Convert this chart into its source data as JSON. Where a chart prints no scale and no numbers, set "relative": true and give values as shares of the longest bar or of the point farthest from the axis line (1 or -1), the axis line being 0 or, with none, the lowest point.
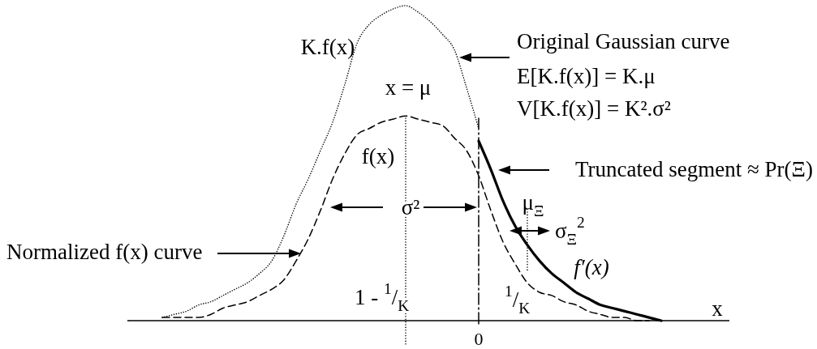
{
  "chart_data": {
    "type": "line",
    "relative": true,
    "xlabel": "x",
    "categories": [
      null,
      null,
      null,
      null,
      null,
      null,
      null,
      null,
      null,
      null,
      null,
      null,
      null,
      null,
      null,
      null,
      null,
      null,
      null,
      null,
      null,
      null,
      null,
      null,
      null,
      null,
      null,
      null,
      null,
      null,
      null,
      null,
      null,
      null,
      null,
      null,
      null,
      null,
      null,
      null,
      null,
      null
    ],
    "series": [
      {
        "name": "K.f(x)",
        "color": "#000000",
        "line_style": "dotted",
        "values": [
          0.01,
          0.02,
          0.03,
          0.05,
          0.06,
          0.08,
          0.1,
          0.12,
          0.15,
          0.19,
          0.27,
          0.37,
          0.45,
          0.54,
          0.63,
          0.75,
          0.88,
          0.94,
          0.97,
          0.99,
          1.0,
          0.98,
          0.95,
          0.91,
          0.86,
          0.74,
          0.61,
          null,
          null,
          null,
          null,
          null,
          null,
          null,
          null,
          null,
          null,
          null,
          null,
          null,
          null,
          null
        ]
      },
      {
        "name": "f(x)",
        "color": "#000000",
        "line_style": "dashed",
        "values": [
          0.01,
          0.01,
          0.01,
          0.01,
          0.02,
          0.04,
          0.05,
          0.06,
          0.08,
          0.1,
          0.13,
          0.19,
          0.26,
          0.35,
          0.45,
          0.53,
          0.59,
          0.61,
          0.63,
          0.64,
          0.65,
          0.64,
          0.63,
          0.62,
          0.58,
          0.54,
          0.46,
          0.35,
          0.25,
          0.18,
          0.12,
          0.09,
          0.08,
          0.06,
          0.05,
          0.03,
          0.02,
          0.01,
          0.01,
          0,
          0,
          null
        ]
      },
      {
        "name": "f′(x)",
        "color": "#000000",
        "line_style": "solid",
        "values": [
          null,
          null,
          null,
          null,
          null,
          null,
          null,
          null,
          null,
          null,
          null,
          null,
          null,
          null,
          null,
          null,
          null,
          null,
          null,
          null,
          null,
          null,
          null,
          null,
          null,
          null,
          0.57,
          0.48,
          0.38,
          0.3,
          0.24,
          0.19,
          0.15,
          0.12,
          0.09,
          0.07,
          0.05,
          0.04,
          0.03,
          0.02,
          0.01,
          0
        ]
      }
    ],
    "annotations": [
      "Original Gaussian curve",
      "E[K.f(x)] = K.μ",
      "V[K.f(x)] = K².σ²",
      "Truncated segment ≈ Pr(Ξ)",
      "Normalized f(x) curve",
      "σ²",
      "σ$_{Ξ}$$^{2}$",
      "1 - $^{1}$/$_{K}$",
      "$^{1}$/$_{K}$",
      "0",
      "x = μ",
      "μ$_{Ξ}$"
    ]
  }
}
